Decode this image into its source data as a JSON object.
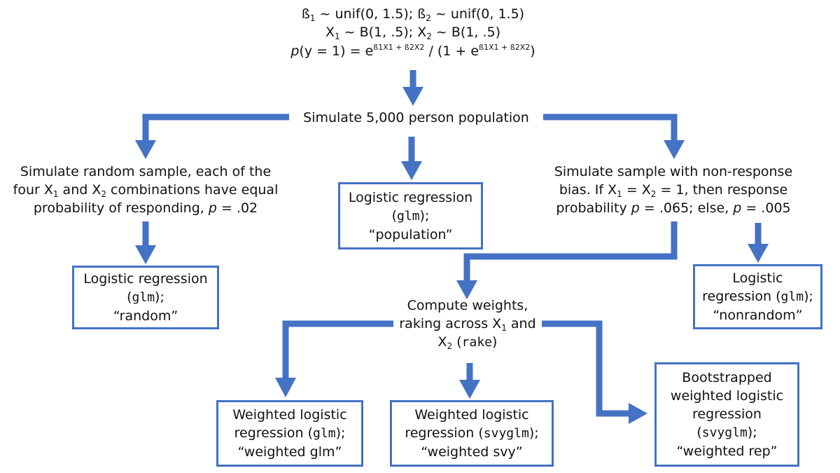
{
  "header": {
    "beta1_label": "ß",
    "beta1_dist": " ~ unif(0, 1.5); ",
    "beta2_label": "ß",
    "beta2_dist": " ~ unif(0, 1.5)",
    "x1_label": "X",
    "x1_dist": " ~ B(1, .5); ",
    "x2_label": "X",
    "x2_dist": " ~ B(1, .5)",
    "prob_p": "p",
    "prob_eq": "(y = 1) = ",
    "prob_e1": "e",
    "prob_exp1": "ß1X1 + ß2X2",
    "prob_mid": " / (1 + ",
    "prob_e2": "e",
    "prob_exp2": "ß1X1 + ß2X2",
    "prob_end": ")",
    "sub1": "1",
    "sub2": "2"
  },
  "simulate_population": "Simulate 5,000 person population",
  "random_sample": {
    "line1": "Simulate random sample, each of the",
    "line2_a": "four X",
    "line2_b": " and X",
    "line2_c": " combinations have equal",
    "line3_a": "probability of responding, ",
    "line3_p": "p",
    "line3_b": " = .02"
  },
  "nonresponse_sample": {
    "line1": "Simulate sample with non-response",
    "line2_a": "bias. If X",
    "line2_b": " = X",
    "line2_c": " = 1, then response",
    "line3_a": "probability ",
    "line3_p1": "p",
    "line3_b": " = .065; else, ",
    "line3_p2": "p",
    "line3_c": " = .005"
  },
  "box_population": {
    "line1": "Logistic regression",
    "code": "glm",
    "paren_open": "(",
    "paren_close": ");",
    "line3": "“population”"
  },
  "box_random": {
    "line1": "Logistic regression",
    "code": "glm",
    "paren_open": "(",
    "paren_close": ");",
    "line3": "“random”"
  },
  "box_nonrandom": {
    "line1": "Logistic",
    "line2_a": "regression (",
    "code": "glm",
    "line2_b": ");",
    "line3": "“nonrandom”"
  },
  "compute_weights": {
    "line1": "Compute weights,",
    "line2": "raking across X",
    "line2_b": " and",
    "line3_a": "X",
    "line3_b": " (",
    "code": "rake",
    "line3_c": ")"
  },
  "box_weighted_glm": {
    "line1": "Weighted logistic",
    "line2_a": "regression (",
    "code": "glm",
    "line2_b": ");",
    "line3": "“weighted glm”"
  },
  "box_weighted_svy": {
    "line1": "Weighted logistic",
    "line2_a": "regression (",
    "code": "svyglm",
    "line2_b": ");",
    "line3": "“weighted svy”"
  },
  "box_weighted_rep": {
    "line1": "Bootstrapped",
    "line2": "weighted logistic",
    "line3": "regression",
    "paren_open": "(",
    "code": "svyglm",
    "paren_close": ");",
    "line5": "“weighted rep”"
  },
  "colors": {
    "arrow": "#4472C4",
    "box_border": "#4472C4",
    "text": "#111111"
  }
}
